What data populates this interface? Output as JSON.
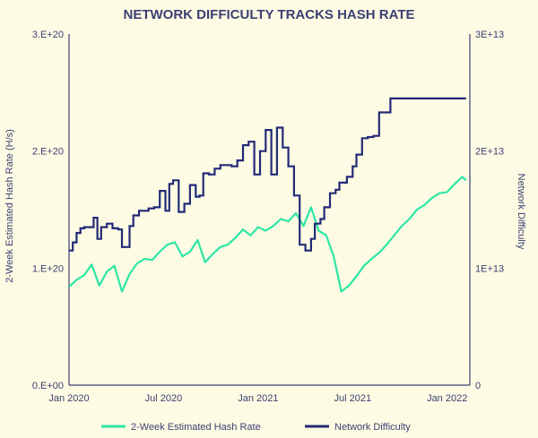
{
  "chart_data": {
    "type": "line",
    "title": "NETWORK DIFFICULTY TRACKS HASH RATE",
    "xlabel": "",
    "ylabel_left": "2-Week Estimated Hash Rate (H/s)",
    "ylabel_right": "Network Difficulty",
    "x_ticks": [
      "Jan 2020",
      "Jul 2020",
      "Jan 2021",
      "Jul 2021",
      "Jan 2022"
    ],
    "x_tick_values": [
      2020.0,
      2020.5,
      2021.0,
      2021.5,
      2022.0
    ],
    "xlim": [
      2020.0,
      2022.12
    ],
    "y_left": {
      "ticks": [
        "0.E+00",
        "1.E+20",
        "2.E+20",
        "3.E+20"
      ],
      "values": [
        0,
        1e+20,
        2e+20,
        3e+20
      ],
      "ylim": [
        0,
        3e+20
      ]
    },
    "y_right": {
      "ticks": [
        "0",
        "1E+13",
        "2E+13",
        "3E+13"
      ],
      "values": [
        0,
        10000000000000.0,
        20000000000000.0,
        30000000000000.0
      ],
      "ylim": [
        0,
        30000000000000.0
      ]
    },
    "series": [
      {
        "name": "2-Week Estimated Hash Rate",
        "axis": "left",
        "color": "#2ee6a6",
        "style": "line",
        "x": [
          2020.0,
          2020.04,
          2020.08,
          2020.12,
          2020.16,
          2020.2,
          2020.24,
          2020.28,
          2020.32,
          2020.36,
          2020.4,
          2020.44,
          2020.48,
          2020.52,
          2020.56,
          2020.6,
          2020.64,
          2020.68,
          2020.72,
          2020.76,
          2020.8,
          2020.84,
          2020.88,
          2020.92,
          2020.96,
          2021.0,
          2021.04,
          2021.08,
          2021.12,
          2021.16,
          2021.2,
          2021.24,
          2021.28,
          2021.32,
          2021.36,
          2021.4,
          2021.44,
          2021.48,
          2021.52,
          2021.56,
          2021.6,
          2021.64,
          2021.68,
          2021.72,
          2021.76,
          2021.8,
          2021.84,
          2021.88,
          2021.92,
          2021.96,
          2022.0,
          2022.04,
          2022.08,
          2022.1
        ],
        "values": [
          8.4e+19,
          9e+19,
          9.4e+19,
          1.03e+20,
          8.5e+19,
          9.7e+19,
          1.02e+20,
          8e+19,
          9.5e+19,
          1.04e+20,
          1.08e+20,
          1.07e+20,
          1.14e+20,
          1.2e+20,
          1.22e+20,
          1.1e+20,
          1.14e+20,
          1.24e+20,
          1.05e+20,
          1.12e+20,
          1.18e+20,
          1.2e+20,
          1.26e+20,
          1.33e+20,
          1.28e+20,
          1.35e+20,
          1.32e+20,
          1.36e+20,
          1.42e+20,
          1.4e+20,
          1.47e+20,
          1.36e+20,
          1.52e+20,
          1.32e+20,
          1.28e+20,
          1.1e+20,
          8e+19,
          8.5e+19,
          9.3e+19,
          1.02e+20,
          1.08e+20,
          1.13e+20,
          1.2e+20,
          1.28e+20,
          1.36e+20,
          1.42e+20,
          1.5e+20,
          1.54e+20,
          1.6e+20,
          1.64e+20,
          1.65e+20,
          1.72e+20,
          1.78e+20,
          1.75e+20
        ]
      },
      {
        "name": "Network Difficulty",
        "axis": "right",
        "color": "#222a78",
        "style": "step",
        "x": [
          2020.0,
          2020.02,
          2020.04,
          2020.06,
          2020.08,
          2020.11,
          2020.13,
          2020.15,
          2020.17,
          2020.2,
          2020.23,
          2020.26,
          2020.28,
          2020.32,
          2020.34,
          2020.37,
          2020.4,
          2020.42,
          2020.45,
          2020.48,
          2020.51,
          2020.53,
          2020.55,
          2020.58,
          2020.61,
          2020.64,
          2020.67,
          2020.69,
          2020.71,
          2020.74,
          2020.77,
          2020.8,
          2020.83,
          2020.86,
          2020.89,
          2020.92,
          2020.95,
          2020.98,
          2021.01,
          2021.04,
          2021.07,
          2021.1,
          2021.13,
          2021.16,
          2021.19,
          2021.22,
          2021.25,
          2021.28,
          2021.3,
          2021.33,
          2021.35,
          2021.38,
          2021.41,
          2021.43,
          2021.47,
          2021.5,
          2021.52,
          2021.55,
          2021.58,
          2021.61,
          2021.64,
          2021.67,
          2021.7,
          2021.73,
          2021.76,
          2021.79,
          2021.81,
          2021.83,
          2021.86,
          2021.89,
          2021.92,
          2021.95,
          2021.98,
          2022.0,
          2022.03,
          2022.06,
          2022.08,
          2022.1
        ],
        "values": [
          11500000000000.0,
          12200000000000.0,
          13000000000000.0,
          13400000000000.0,
          13500000000000.0,
          13500000000000.0,
          14300000000000.0,
          12500000000000.0,
          13500000000000.0,
          13800000000000.0,
          13400000000000.0,
          13300000000000.0,
          11800000000000.0,
          13600000000000.0,
          14500000000000.0,
          14900000000000.0,
          14900000000000.0,
          15100000000000.0,
          15200000000000.0,
          16600000000000.0,
          14900000000000.0,
          17200000000000.0,
          17500000000000.0,
          14800000000000.0,
          15500000000000.0,
          17100000000000.0,
          16100000000000.0,
          16200000000000.0,
          18100000000000.0,
          18000000000000.0,
          18500000000000.0,
          18800000000000.0,
          18800000000000.0,
          18700000000000.0,
          19200000000000.0,
          20500000000000.0,
          20800000000000.0,
          18000000000000.0,
          20000000000000.0,
          21800000000000.0,
          18000000000000.0,
          22000000000000.0,
          20300000000000.0,
          18700000000000.0,
          16200000000000.0,
          12000000000000.0,
          11500000000000.0,
          12500000000000.0,
          13800000000000.0,
          14200000000000.0,
          15200000000000.0,
          16400000000000.0,
          16700000000000.0,
          17300000000000.0,
          17800000000000.0,
          18700000000000.0,
          19700000000000.0,
          21100000000000.0,
          21200000000000.0,
          21300000000000.0,
          23300000000000.0,
          23300000000000.0,
          24500000000000.0,
          24500000000000.0,
          24500000000000.0,
          24500000000000.0,
          24500000000000.0,
          24500000000000.0,
          24500000000000.0,
          24500000000000.0,
          24500000000000.0,
          24500000000000.0,
          24500000000000.0,
          24500000000000.0,
          24500000000000.0,
          24500000000000.0,
          24500000000000.0,
          24500000000000.0
        ]
      }
    ],
    "legend": [
      "2-Week Estimated Hash Rate",
      "Network Difficulty"
    ],
    "legend_position": "bottom",
    "grid": false
  }
}
